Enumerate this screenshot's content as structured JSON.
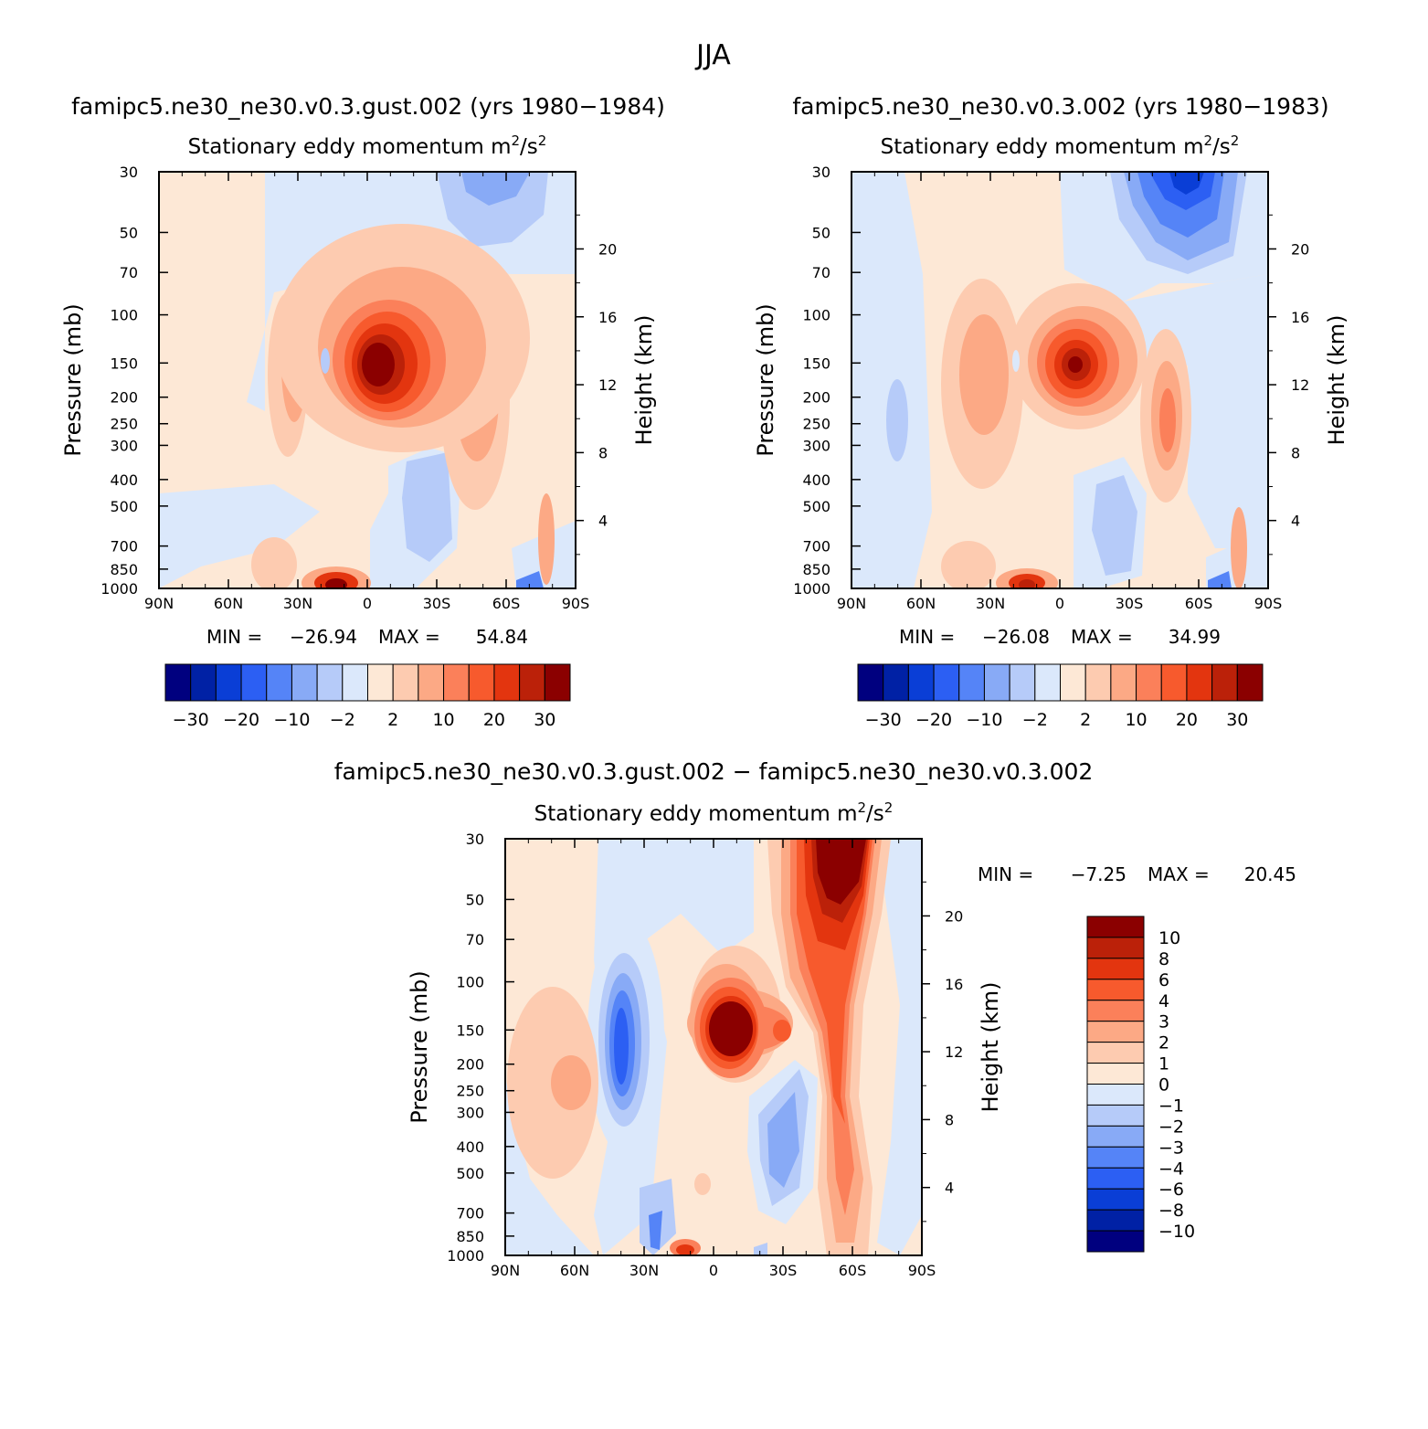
{
  "figure": {
    "suptitle": "JJA",
    "colors": {
      "full": [
        "#00007f",
        "#0021a5",
        "#0a3ed6",
        "#2c5ff3",
        "#5584f7",
        "#88aaf6",
        "#b6cbf9",
        "#dbe8fb",
        "#fde8d6",
        "#fdcbb0",
        "#fca985",
        "#fb805a",
        "#f75a2d",
        "#e3350f",
        "#bb2109",
        "#8b0000"
      ],
      "diff": [
        "#00007f",
        "#0021a5",
        "#0a3ed6",
        "#2c5ff3",
        "#5584f7",
        "#88aaf6",
        "#b6cbf9",
        "#dbe8fb",
        "#fde8d6",
        "#fdcbb0",
        "#fca985",
        "#fb805a",
        "#f75a2d",
        "#e3350f",
        "#bb2109",
        "#8b0000"
      ]
    }
  },
  "chart_data": [
    {
      "type": "contour",
      "title": "famipc5.ne30_ne30.v0.3.gust.002 (yrs 1980−1984)",
      "subtitle_main": "Stationary eddy momentum  m",
      "subtitle_sup1": "2",
      "subtitle_mid": "/s",
      "subtitle_sup2": "2",
      "xlabel": "",
      "ylabel": "Pressure (mb)",
      "y2label": "Height (km)",
      "xticks": [
        "90N",
        "60N",
        "30N",
        "0",
        "30S",
        "60S",
        "90S"
      ],
      "yticks": [
        "30",
        "50",
        "70",
        "100",
        "150",
        "200",
        "250",
        "300",
        "400",
        "500",
        "700",
        "850",
        "1000"
      ],
      "y2ticks": [
        "20",
        "16",
        "12",
        "8",
        "4"
      ],
      "min_label": "MIN =",
      "min_value": "−26.94",
      "max_label": "MAX =",
      "max_value": "54.84",
      "levels": [
        -30,
        -25,
        -20,
        -15,
        -10,
        -5,
        -2,
        0,
        2,
        5,
        10,
        15,
        20,
        25,
        30
      ],
      "colorbar_labels": [
        "−30",
        "−20",
        "−10",
        "−2",
        "2",
        "10",
        "20",
        "30"
      ],
      "features": [
        {
          "lat": 8,
          "p": 150,
          "value": 54.8
        },
        {
          "lat": 25,
          "p": 150,
          "value": 8
        },
        {
          "lat": -45,
          "p": 200,
          "value": 6
        },
        {
          "lat": 12,
          "p": 1000,
          "value": 25
        },
        {
          "lat": -40,
          "p": 40,
          "value": -6
        },
        {
          "lat": -18,
          "p": 450,
          "value": -3
        },
        {
          "lat": -88,
          "p": 950,
          "value": -26.9
        }
      ]
    },
    {
      "type": "contour",
      "title": "famipc5.ne30_ne30.v0.3.002 (yrs 1980−1983)",
      "subtitle_main": "Stationary eddy momentum  m",
      "subtitle_sup1": "2",
      "subtitle_mid": "/s",
      "subtitle_sup2": "2",
      "xlabel": "",
      "ylabel": "Pressure (mb)",
      "y2label": "Height (km)",
      "xticks": [
        "90N",
        "60N",
        "30N",
        "0",
        "30S",
        "60S",
        "90S"
      ],
      "yticks": [
        "30",
        "50",
        "70",
        "100",
        "150",
        "200",
        "250",
        "300",
        "400",
        "500",
        "700",
        "850",
        "1000"
      ],
      "y2ticks": [
        "20",
        "16",
        "12",
        "8",
        "4"
      ],
      "min_label": "MIN =",
      "min_value": "−26.08",
      "max_label": "MAX =",
      "max_value": "34.99",
      "levels": [
        -30,
        -25,
        -20,
        -15,
        -10,
        -5,
        -2,
        0,
        2,
        5,
        10,
        15,
        20,
        25,
        30
      ],
      "colorbar_labels": [
        "−30",
        "−20",
        "−10",
        "−2",
        "2",
        "10",
        "20",
        "30"
      ],
      "features": [
        {
          "lat": 6,
          "p": 150,
          "value": 35.0
        },
        {
          "lat": 32,
          "p": 150,
          "value": 10
        },
        {
          "lat": -45,
          "p": 200,
          "value": 12
        },
        {
          "lat": 12,
          "p": 1000,
          "value": 20
        },
        {
          "lat": -55,
          "p": 35,
          "value": -18
        },
        {
          "lat": -20,
          "p": 550,
          "value": -5
        },
        {
          "lat": -88,
          "p": 950,
          "value": -26.1
        }
      ]
    },
    {
      "type": "contour",
      "title": "famipc5.ne30_ne30.v0.3.gust.002 − famipc5.ne30_ne30.v0.3.002",
      "subtitle_main": "Stationary eddy momentum  m",
      "subtitle_sup1": "2",
      "subtitle_mid": "/s",
      "subtitle_sup2": "2",
      "xlabel": "",
      "ylabel": "Pressure (mb)",
      "y2label": "Height (km)",
      "xticks": [
        "90N",
        "60N",
        "30N",
        "0",
        "30S",
        "60S",
        "90S"
      ],
      "yticks": [
        "30",
        "50",
        "70",
        "100",
        "150",
        "200",
        "250",
        "300",
        "400",
        "500",
        "700",
        "850",
        "1000"
      ],
      "y2ticks": [
        "20",
        "16",
        "12",
        "8",
        "4"
      ],
      "min_label": "MIN =",
      "min_value": "−7.25",
      "max_label": "MAX =",
      "max_value": "20.45",
      "levels": [
        -10,
        -8,
        -6,
        -4,
        -3,
        -2,
        -1,
        0,
        1,
        2,
        3,
        4,
        6,
        8,
        10
      ],
      "colorbar_labels": [
        "10",
        "8",
        "6",
        "4",
        "3",
        "2",
        "1",
        "0",
        "−1",
        "−2",
        "−3",
        "−4",
        "−6",
        "−8",
        "−10"
      ],
      "features": [
        {
          "lat": 5,
          "p": 150,
          "value": 12
        },
        {
          "lat": -55,
          "p": 40,
          "value": 20.4
        },
        {
          "lat": -52,
          "p": 200,
          "value": 6
        },
        {
          "lat": 40,
          "p": 150,
          "value": -7.2
        },
        {
          "lat": 70,
          "p": 250,
          "value": 2
        },
        {
          "lat": -30,
          "p": 400,
          "value": -3
        },
        {
          "lat": 14,
          "p": 1000,
          "value": 8
        }
      ]
    }
  ]
}
